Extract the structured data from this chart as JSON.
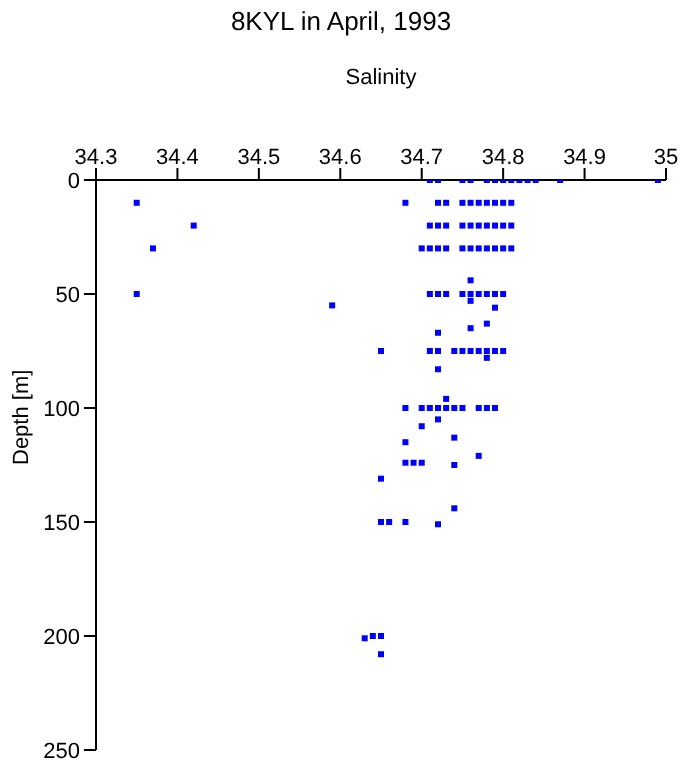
{
  "chart_data": {
    "type": "scatter",
    "title": "8KYL in April, 1993",
    "xlabel": "Salinity",
    "ylabel": "Depth [m]",
    "xlim": [
      34.3,
      35
    ],
    "xticks": [
      34.3,
      34.4,
      34.5,
      34.6,
      34.7,
      34.8,
      34.9,
      35
    ],
    "ylim": [
      250,
      0
    ],
    "yticks": [
      0,
      50,
      100,
      150,
      200,
      250
    ],
    "marker": "square",
    "series": [
      {
        "color": "#0000ff",
        "x": [
          34.71,
          34.72,
          34.75,
          34.76,
          34.78,
          34.79,
          34.8,
          34.81,
          34.82,
          34.83,
          34.84,
          34.87,
          34.99,
          34.35,
          34.68,
          34.72,
          34.73,
          34.75,
          34.76,
          34.77,
          34.78,
          34.79,
          34.8,
          34.81,
          34.42,
          34.71,
          34.72,
          34.73,
          34.75,
          34.76,
          34.77,
          34.78,
          34.79,
          34.8,
          34.81,
          34.37,
          34.7,
          34.71,
          34.72,
          34.73,
          34.75,
          34.76,
          34.77,
          34.78,
          34.79,
          34.8,
          34.81,
          34.76,
          34.35,
          34.71,
          34.72,
          34.73,
          34.75,
          34.76,
          34.77,
          34.78,
          34.79,
          34.8,
          34.76,
          34.59,
          34.79,
          34.78,
          34.76,
          34.72,
          34.65,
          34.71,
          34.72,
          34.74,
          34.75,
          34.76,
          34.77,
          34.78,
          34.79,
          34.8,
          34.78,
          34.72,
          34.73,
          34.68,
          34.7,
          34.71,
          34.72,
          34.73,
          34.74,
          34.75,
          34.77,
          34.78,
          34.79,
          34.72,
          34.7,
          34.74,
          34.68,
          34.77,
          34.68,
          34.69,
          34.7,
          34.74,
          34.65,
          34.74,
          34.65,
          34.66,
          34.68,
          34.72,
          34.64,
          34.65,
          34.63,
          34.65
        ],
        "values": [
          0,
          0,
          0,
          0,
          0,
          0,
          0,
          0,
          0,
          0,
          0,
          0,
          0,
          10,
          10,
          10,
          10,
          10,
          10,
          10,
          10,
          10,
          10,
          10,
          20,
          20,
          20,
          20,
          20,
          20,
          20,
          20,
          20,
          20,
          20,
          30,
          30,
          30,
          30,
          30,
          30,
          30,
          30,
          30,
          30,
          30,
          30,
          44,
          50,
          50,
          50,
          50,
          50,
          50,
          50,
          50,
          50,
          50,
          53,
          55,
          56,
          63,
          65,
          67,
          75,
          75,
          75,
          75,
          75,
          75,
          75,
          75,
          75,
          75,
          78,
          83,
          96,
          100,
          100,
          100,
          100,
          100,
          100,
          100,
          100,
          100,
          100,
          105,
          108,
          113,
          115,
          121,
          124,
          124,
          124,
          125,
          131,
          144,
          150,
          150,
          150,
          151,
          200,
          200,
          201,
          208
        ]
      }
    ]
  }
}
